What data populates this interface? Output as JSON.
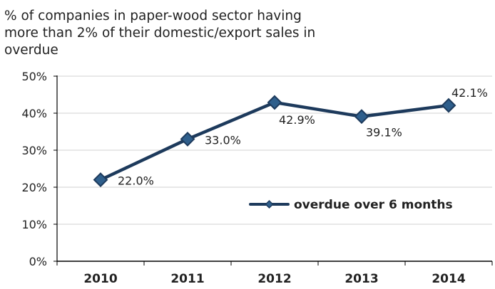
{
  "chart_data": {
    "type": "line",
    "title": "% of companies in paper-wood sector having more than 2% of their domestic/export sales in overdue",
    "title_lines": [
      "% of companies in paper-wood sector having",
      "more than 2% of their domestic/export sales in",
      "overdue"
    ],
    "xlabel": "",
    "ylabel": "",
    "categories": [
      "2010",
      "2011",
      "2012",
      "2013",
      "2014"
    ],
    "y_ticks": [
      "0%",
      "10%",
      "20%",
      "30%",
      "40%",
      "50%"
    ],
    "ylim": [
      0,
      50
    ],
    "grid": true,
    "legend_position": "center-right",
    "series": [
      {
        "name": "overdue over 6 months",
        "values": [
          22.0,
          33.0,
          42.9,
          39.1,
          42.1
        ],
        "data_labels": [
          "22.0%",
          "33.0%",
          "42.9%",
          "39.1%",
          "42.1%"
        ]
      }
    ],
    "colors": {
      "series": "#1d3a5c",
      "marker_fill": "#2f5f8c",
      "grid": "#d0d0d0",
      "axis": "#000000",
      "text": "#222222"
    }
  }
}
